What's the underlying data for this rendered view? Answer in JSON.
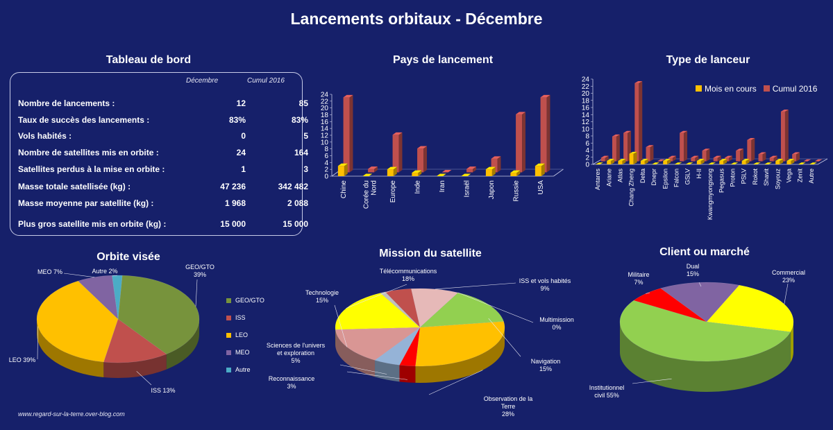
{
  "title": "Lancements orbitaux - Décembre",
  "dashboard": {
    "title": "Tableau de bord",
    "col1": "Décembre",
    "col2": "Cumul 2016",
    "rows": [
      {
        "label": "Nombre de lancements :",
        "v1": "12",
        "v2": "85"
      },
      {
        "label": "Taux de succès des lancements :",
        "v1": "83%",
        "v2": "83%"
      },
      {
        "label": "Vols habités :",
        "v1": "0",
        "v2": "5"
      },
      {
        "label": "Nombre de satellites mis en orbite :",
        "v1": "24",
        "v2": "164"
      },
      {
        "label": "Satellites perdus à la mise en orbite :",
        "v1": "1",
        "v2": "3"
      },
      {
        "label": "Masse totale satellisée (kg) :",
        "v1": "47 236",
        "v2": "342 482"
      },
      {
        "label": "Masse moyenne par satellite (kg) :",
        "v1": "1 968",
        "v2": "2 088"
      },
      {
        "label": "Plus gros satellite mis en orbite (kg) :",
        "v1": "15 000",
        "v2": "15 000"
      }
    ]
  },
  "chart_data": [
    {
      "id": "pays",
      "type": "bar",
      "title": "Pays de lancement",
      "categories": [
        "Chine",
        "Corée du Nord",
        "Europe",
        "Inde",
        "Iran",
        "Israël",
        "Japon",
        "Russie",
        "USA"
      ],
      "series": [
        {
          "name": "Mois en cours",
          "color": "#ffc000",
          "values": [
            3,
            0,
            2,
            1,
            0,
            0,
            2,
            1,
            3
          ]
        },
        {
          "name": "Cumul 2016",
          "color": "#c0504d",
          "values": [
            22,
            1,
            11,
            7,
            0,
            1,
            4,
            17,
            22
          ]
        }
      ],
      "yticks": [
        "0",
        "2",
        "4",
        "6",
        "8",
        "10",
        "12",
        "14",
        "16",
        "18",
        "20",
        "22",
        "24"
      ],
      "ylim": [
        0,
        24
      ]
    },
    {
      "id": "lanceur",
      "type": "bar",
      "title": "Type de lanceur",
      "legend_position": "top-right",
      "categories": [
        "Antares",
        "Ariane",
        "Atlas",
        "Chang Zheng",
        "Delta",
        "Dnepr",
        "Epsilon",
        "Falcon",
        "GSLV",
        "H-II",
        "Kwangmyongsong",
        "Pegasus",
        "Proton",
        "PSLV",
        "Rokot",
        "Shavit",
        "Soyouz",
        "Vega",
        "Zenit",
        "Autre"
      ],
      "series": [
        {
          "name": "Mois en cours",
          "color": "#ffc000",
          "values": [
            0,
            1,
            1,
            3,
            1,
            0,
            1,
            0,
            0,
            1,
            0,
            1,
            0,
            1,
            0,
            0,
            1,
            1,
            0,
            0
          ]
        },
        {
          "name": "Cumul 2016",
          "color": "#c0504d",
          "values": [
            1,
            7,
            8,
            22,
            4,
            0,
            1,
            8,
            1,
            3,
            1,
            1,
            3,
            6,
            2,
            1,
            14,
            2,
            0,
            0
          ]
        }
      ],
      "yticks": [
        "0",
        "2",
        "4",
        "6",
        "8",
        "10",
        "12",
        "14",
        "16",
        "18",
        "20",
        "22",
        "24"
      ],
      "ylim": [
        0,
        24
      ]
    },
    {
      "id": "orbite",
      "type": "pie",
      "title": "Orbite visée",
      "slices": [
        {
          "name": "GEO/GTO",
          "label": "GEO/GTO\n39%",
          "value": 39,
          "color": "#77933c"
        },
        {
          "name": "ISS",
          "label": "ISS 13%",
          "value": 13,
          "color": "#c0504d"
        },
        {
          "name": "LEO",
          "label": "LEO 39%",
          "value": 39,
          "color": "#ffc000"
        },
        {
          "name": "MEO",
          "label": "MEO 7%",
          "value": 7,
          "color": "#8064a2"
        },
        {
          "name": "Autre",
          "label": "Autre 2%",
          "value": 2,
          "color": "#4bacc6"
        }
      ],
      "legend": [
        "GEO/GTO",
        "ISS",
        "LEO",
        "MEO",
        "Autre"
      ]
    },
    {
      "id": "mission",
      "type": "pie",
      "title": "Mission du satellite",
      "slices": [
        {
          "name": "ISS et vols habités",
          "label": "ISS et vols habités\n9%",
          "value": 9,
          "color": "#e6b9b8"
        },
        {
          "name": "Multimission",
          "label": "Multimission\n0%",
          "value": 0,
          "color": "#8064a2"
        },
        {
          "name": "Navigation",
          "label": "Navigation\n15%",
          "value": 15,
          "color": "#92d050"
        },
        {
          "name": "Observation de la Terre",
          "label": "Observation de la\nTerre\n28%",
          "value": 28,
          "color": "#ffc000"
        },
        {
          "name": "Reconnaissance",
          "label": "Reconnaissance\n3%",
          "value": 3,
          "color": "#ff0000"
        },
        {
          "name": "Sciences de l'univers et exploration",
          "label": "Sciences de l'univers\net exploration\n5%",
          "value": 5,
          "color": "#95b3d7"
        },
        {
          "name": "Technologie",
          "label": "Technologie\n15%",
          "value": 15,
          "color": "#d99694"
        },
        {
          "name": "Télécommunications",
          "label": "Télécommunications\n18%",
          "value": 18,
          "color": "#ffff00"
        },
        {
          "name": "Autre",
          "label": "",
          "value": 1,
          "color": "#bfbfbf"
        },
        {
          "name": "Multimission-sliver",
          "label": "",
          "value": 5,
          "color": "#c0504d"
        }
      ]
    },
    {
      "id": "client",
      "type": "pie",
      "title": "Client ou marché",
      "slices": [
        {
          "name": "Commercial",
          "label": "Commercial\n23%",
          "value": 23,
          "color": "#ffff00"
        },
        {
          "name": "Institutionnel civil",
          "label": "Institutionnel\ncivil 55%",
          "value": 55,
          "color": "#92d050"
        },
        {
          "name": "Militaire",
          "label": "Militaire\n7%",
          "value": 7,
          "color": "#ff0000"
        },
        {
          "name": "Dual",
          "label": "Dual\n15%",
          "value": 15,
          "color": "#8064a2"
        }
      ]
    }
  ],
  "footer": "www.regard-sur-la-terre.over-blog.com"
}
